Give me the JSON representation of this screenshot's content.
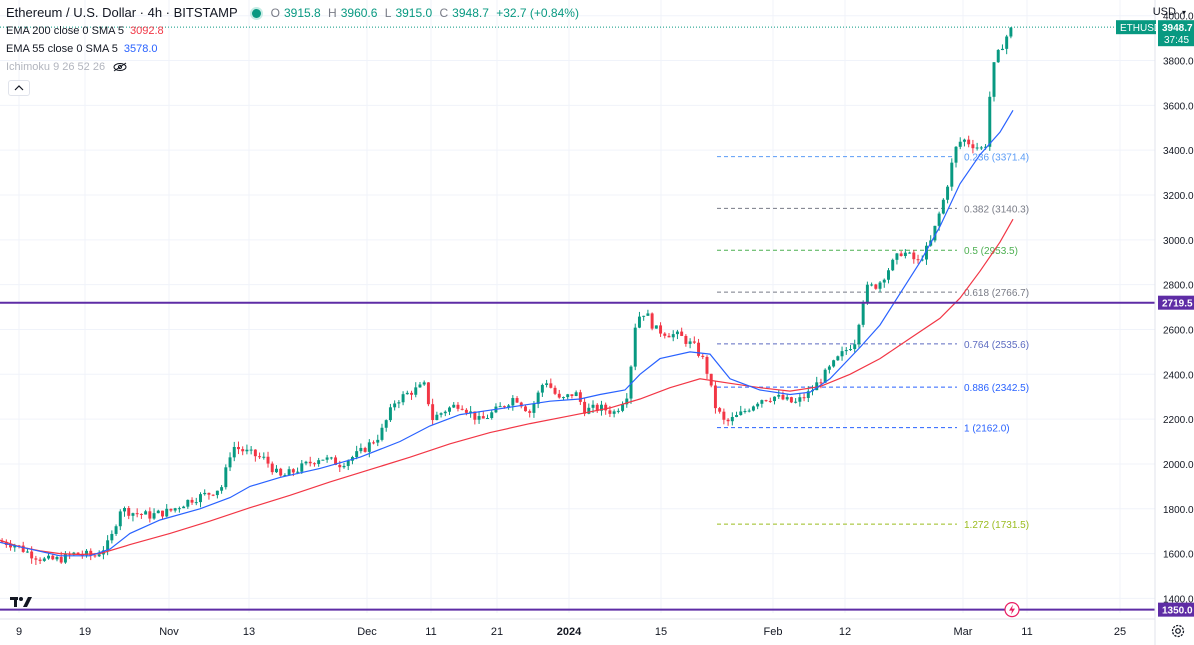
{
  "header": {
    "symbol": "Ethereum / U.S. Dollar · 4h · BITSTAMP",
    "ohlc": {
      "o_label": "O",
      "o": "3915.8",
      "h_label": "H",
      "h": "3960.6",
      "l_label": "L",
      "l": "3915.0",
      "c_label": "C",
      "c": "3948.7",
      "change": "+32.7 (+0.84%)"
    },
    "indicators": [
      {
        "label": "EMA 200 close 0 SMA 5",
        "value": "3092.8",
        "color": "#f23645"
      },
      {
        "label": "EMA 55 close 0 SMA 5",
        "value": "3578.0",
        "color": "#2962ff"
      },
      {
        "label": "Ichimoku 9 26 52 26",
        "value": "",
        "color": "#b2b5be"
      }
    ],
    "collapse_icon": "chevron-up-icon"
  },
  "axis": {
    "currency": "USD"
  },
  "chart_data": {
    "type": "candlestick",
    "y_ticks": [
      1400,
      1600,
      1800,
      2000,
      2200,
      2400,
      2600,
      2800,
      3000,
      3200,
      3400,
      3600,
      3800,
      4000
    ],
    "y_tick_labels": [
      "1400.0",
      "1600.0",
      "1800.0",
      "2000.0",
      "2200.0",
      "2400.0",
      "2600.0",
      "2800.0",
      "3000.0",
      "3200.0",
      "3400.0",
      "3600.0",
      "3800.0",
      "4000.0"
    ],
    "ylim": [
      1335,
      4070
    ],
    "x_labels": [
      "9",
      "19",
      "Nov",
      "13",
      "Dec",
      "11",
      "21",
      "2024",
      "15",
      "Feb",
      "12",
      "Mar",
      "11",
      "25"
    ],
    "x_label_bold": [
      "2024"
    ],
    "series": [
      {
        "name": "EMA 200",
        "color": "#f23645",
        "points": [
          [
            0,
            1660
          ],
          [
            20,
            1630
          ],
          [
            40,
            1612
          ],
          [
            60,
            1600
          ],
          [
            80,
            1596
          ],
          [
            100,
            1600
          ],
          [
            130,
            1640
          ],
          [
            170,
            1690
          ],
          [
            210,
            1745
          ],
          [
            250,
            1805
          ],
          [
            290,
            1860
          ],
          [
            330,
            1920
          ],
          [
            370,
            1975
          ],
          [
            410,
            2030
          ],
          [
            450,
            2090
          ],
          [
            490,
            2140
          ],
          [
            530,
            2180
          ],
          [
            570,
            2215
          ],
          [
            610,
            2250
          ],
          [
            640,
            2290
          ],
          [
            670,
            2340
          ],
          [
            700,
            2380
          ],
          [
            730,
            2360
          ],
          [
            760,
            2340
          ],
          [
            790,
            2325
          ],
          [
            820,
            2345
          ],
          [
            850,
            2400
          ],
          [
            880,
            2470
          ],
          [
            910,
            2560
          ],
          [
            940,
            2650
          ],
          [
            960,
            2740
          ],
          [
            980,
            2860
          ],
          [
            1000,
            2990
          ],
          [
            1013,
            3092
          ]
        ]
      },
      {
        "name": "EMA 55",
        "color": "#2962ff",
        "points": [
          [
            0,
            1650
          ],
          [
            30,
            1620
          ],
          [
            60,
            1590
          ],
          [
            90,
            1590
          ],
          [
            110,
            1620
          ],
          [
            130,
            1690
          ],
          [
            160,
            1750
          ],
          [
            200,
            1800
          ],
          [
            230,
            1850
          ],
          [
            250,
            1900
          ],
          [
            280,
            1940
          ],
          [
            320,
            1980
          ],
          [
            360,
            2030
          ],
          [
            400,
            2100
          ],
          [
            430,
            2170
          ],
          [
            460,
            2220
          ],
          [
            490,
            2240
          ],
          [
            520,
            2260
          ],
          [
            550,
            2280
          ],
          [
            580,
            2290
          ],
          [
            600,
            2310
          ],
          [
            625,
            2330
          ],
          [
            640,
            2400
          ],
          [
            660,
            2470
          ],
          [
            690,
            2500
          ],
          [
            710,
            2490
          ],
          [
            730,
            2380
          ],
          [
            760,
            2330
          ],
          [
            790,
            2310
          ],
          [
            810,
            2320
          ],
          [
            830,
            2380
          ],
          [
            860,
            2520
          ],
          [
            880,
            2620
          ],
          [
            900,
            2760
          ],
          [
            920,
            2900
          ],
          [
            940,
            3060
          ],
          [
            960,
            3250
          ],
          [
            980,
            3380
          ],
          [
            1000,
            3480
          ],
          [
            1013,
            3578
          ]
        ]
      }
    ],
    "fib_levels": [
      {
        "ratio": "0.236",
        "value": 3371.4,
        "label": "0.236 (3371.4)",
        "color": "#5b9cf6"
      },
      {
        "ratio": "0.382",
        "value": 3140.3,
        "label": "0.382 (3140.3)",
        "color": "#787b86"
      },
      {
        "ratio": "0.5",
        "value": 2953.5,
        "label": "0.5 (2953.5)",
        "color": "#4caf50"
      },
      {
        "ratio": "0.618",
        "value": 2766.7,
        "label": "0.618 (2766.7)",
        "color": "#787b86"
      },
      {
        "ratio": "0.764",
        "value": 2535.6,
        "label": "0.764 (2535.6)",
        "color": "#5c6bc0"
      },
      {
        "ratio": "0.886",
        "value": 2342.5,
        "label": "0.886 (2342.5)",
        "color": "#2962ff"
      },
      {
        "ratio": "1",
        "value": 2162.0,
        "label": "1 (2162.0)",
        "color": "#2962ff"
      },
      {
        "ratio": "1.272",
        "value": 1731.5,
        "label": "1.272 (1731.5)",
        "color": "#9bbc1f"
      }
    ],
    "horizontal_lines": [
      {
        "value": 2719.5,
        "label": "2719.5",
        "color": "#5e2ca5"
      },
      {
        "value": 1350.0,
        "label": "1350.0",
        "color": "#5e2ca5"
      }
    ],
    "last_price": {
      "symbol": "ETHUSD",
      "value": 3948.7,
      "label": "3948.7",
      "countdown": "37:45",
      "color": "#089981"
    },
    "price_path": [
      [
        0,
        1655
      ],
      [
        15,
        1640
      ],
      [
        30,
        1600
      ],
      [
        45,
        1570
      ],
      [
        60,
        1575
      ],
      [
        75,
        1600
      ],
      [
        95,
        1590
      ],
      [
        110,
        1650
      ],
      [
        120,
        1800
      ],
      [
        135,
        1780
      ],
      [
        150,
        1770
      ],
      [
        170,
        1790
      ],
      [
        190,
        1840
      ],
      [
        210,
        1870
      ],
      [
        222,
        1900
      ],
      [
        232,
        2080
      ],
      [
        248,
        2050
      ],
      [
        265,
        2020
      ],
      [
        280,
        1940
      ],
      [
        295,
        1970
      ],
      [
        320,
        2030
      ],
      [
        340,
        2000
      ],
      [
        360,
        2050
      ],
      [
        380,
        2130
      ],
      [
        395,
        2280
      ],
      [
        410,
        2320
      ],
      [
        425,
        2350
      ],
      [
        432,
        2200
      ],
      [
        445,
        2240
      ],
      [
        460,
        2270
      ],
      [
        480,
        2190
      ],
      [
        500,
        2250
      ],
      [
        515,
        2300
      ],
      [
        530,
        2230
      ],
      [
        545,
        2380
      ],
      [
        560,
        2280
      ],
      [
        575,
        2320
      ],
      [
        585,
        2240
      ],
      [
        600,
        2250
      ],
      [
        615,
        2230
      ],
      [
        628,
        2320
      ],
      [
        636,
        2650
      ],
      [
        645,
        2680
      ],
      [
        655,
        2600
      ],
      [
        670,
        2580
      ],
      [
        680,
        2570
      ],
      [
        695,
        2520
      ],
      [
        705,
        2450
      ],
      [
        715,
        2260
      ],
      [
        725,
        2180
      ],
      [
        740,
        2220
      ],
      [
        760,
        2290
      ],
      [
        775,
        2300
      ],
      [
        795,
        2270
      ],
      [
        810,
        2320
      ],
      [
        825,
        2400
      ],
      [
        840,
        2480
      ],
      [
        855,
        2550
      ],
      [
        865,
        2780
      ],
      [
        878,
        2800
      ],
      [
        890,
        2880
      ],
      [
        902,
        2950
      ],
      [
        918,
        2900
      ],
      [
        930,
        2980
      ],
      [
        945,
        3200
      ],
      [
        955,
        3400
      ],
      [
        962,
        3450
      ],
      [
        975,
        3420
      ],
      [
        985,
        3400
      ],
      [
        992,
        3750
      ],
      [
        1000,
        3850
      ],
      [
        1008,
        3920
      ],
      [
        1013,
        3948.7
      ]
    ],
    "candle_count": 240
  }
}
